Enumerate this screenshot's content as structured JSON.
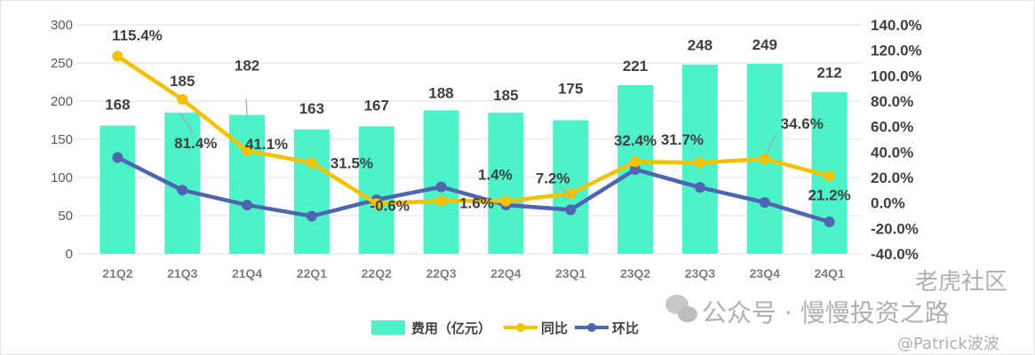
{
  "chart_data": {
    "type": "bar+line",
    "categories": [
      "21Q2",
      "21Q3",
      "21Q4",
      "22Q1",
      "22Q2",
      "22Q3",
      "22Q4",
      "23Q1",
      "23Q2",
      "23Q3",
      "23Q4",
      "24Q1"
    ],
    "series": [
      {
        "name": "费用（亿元）",
        "type": "bar",
        "axis": "left",
        "color": "#4ef2c8",
        "values": [
          168,
          185,
          182,
          163,
          167,
          188,
          185,
          175,
          221,
          248,
          249,
          212
        ],
        "labels": [
          "168",
          "185",
          "182",
          "163",
          "167",
          "188",
          "185",
          "175",
          "221",
          "248",
          "249",
          "212"
        ]
      },
      {
        "name": "同比",
        "type": "line",
        "axis": "right",
        "color": "#f5c000",
        "values": [
          115.4,
          81.4,
          41.1,
          31.5,
          -0.6,
          1.6,
          1.4,
          7.2,
          32.4,
          31.7,
          34.6,
          21.2
        ],
        "labels": [
          "115.4%",
          "81.4%",
          "41.1%",
          "31.5%",
          "-0.6%",
          "1.6%",
          "1.4%",
          "7.2%",
          "32.4%",
          "31.7%",
          "34.6%",
          "21.2%"
        ]
      },
      {
        "name": "环比",
        "type": "line",
        "axis": "right",
        "color": "#4f65b0",
        "values": [
          35.7,
          10.1,
          -1.6,
          -10.4,
          2.5,
          12.6,
          -1.6,
          -5.4,
          26.3,
          12.2,
          0.4,
          -14.9
        ]
      }
    ],
    "left_axis": {
      "range": [
        0,
        300
      ],
      "ticks": [
        "0",
        "50",
        "100",
        "150",
        "200",
        "250",
        "300"
      ]
    },
    "right_axis": {
      "range": [
        -40,
        140
      ],
      "ticks": [
        "-40.0%",
        "-20.0%",
        "0.0%",
        "20.0%",
        "40.0%",
        "60.0%",
        "80.0%",
        "100.0%",
        "120.0%",
        "140.0%"
      ]
    },
    "grid": true,
    "legend_position": "bottom"
  },
  "watermark": {
    "wechat": "公众号 · 慢慢投资之路",
    "community": "老虎社区",
    "author": "@Patrick波波"
  }
}
